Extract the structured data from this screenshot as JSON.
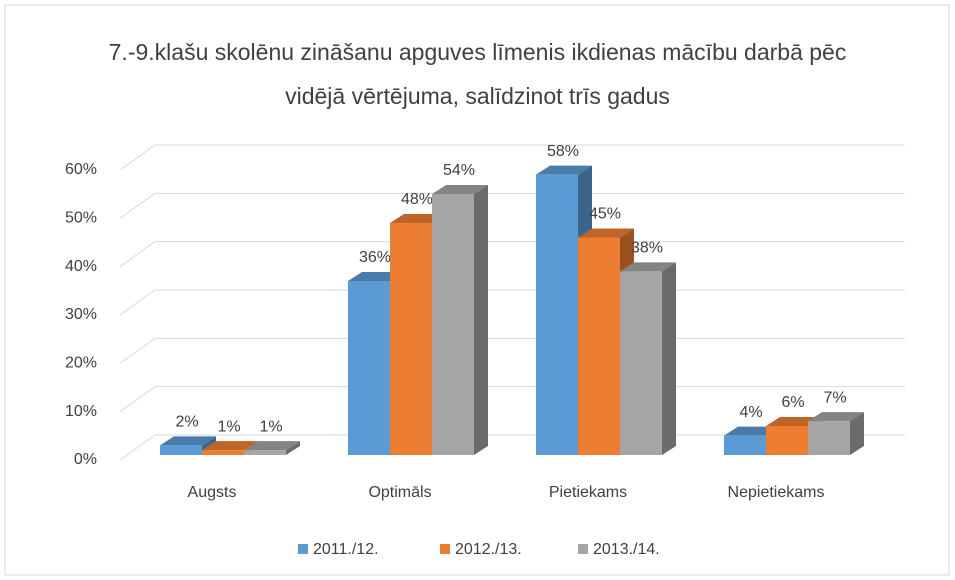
{
  "chart_data": {
    "type": "bar3d",
    "title": "7.-9.klašu skolēnu zināšanu apguves līmenis ikdienas mācību darbā pēc vidējā vērtējuma, salīdzinot trīs gadus",
    "categories": [
      "Augsts",
      "Optimāls",
      "Pietiekams",
      "Nepietiekams"
    ],
    "series": [
      {
        "name": "2011./12.",
        "color": "#5b9bd5",
        "values": [
          2,
          36,
          58,
          4
        ],
        "value_labels": [
          "2%",
          "36%",
          "58%",
          "4%"
        ]
      },
      {
        "name": "2012./13.",
        "color": "#ed7d31",
        "values": [
          1,
          48,
          45,
          6
        ],
        "value_labels": [
          "1%",
          "48%",
          "45%",
          "6%"
        ]
      },
      {
        "name": "2013./14.",
        "color": "#a5a5a5",
        "values": [
          1,
          54,
          38,
          7
        ],
        "value_labels": [
          "1%",
          "54%",
          "38%",
          "7%"
        ]
      }
    ],
    "ylim": [
      0,
      60
    ],
    "yticks": [
      {
        "value": 0,
        "label": "0%"
      },
      {
        "value": 10,
        "label": "10%"
      },
      {
        "value": 20,
        "label": "20%"
      },
      {
        "value": 30,
        "label": "30%"
      },
      {
        "value": 40,
        "label": "40%"
      },
      {
        "value": 50,
        "label": "50%"
      },
      {
        "value": 60,
        "label": "60%"
      }
    ],
    "grid": true,
    "legend": "bottom"
  }
}
